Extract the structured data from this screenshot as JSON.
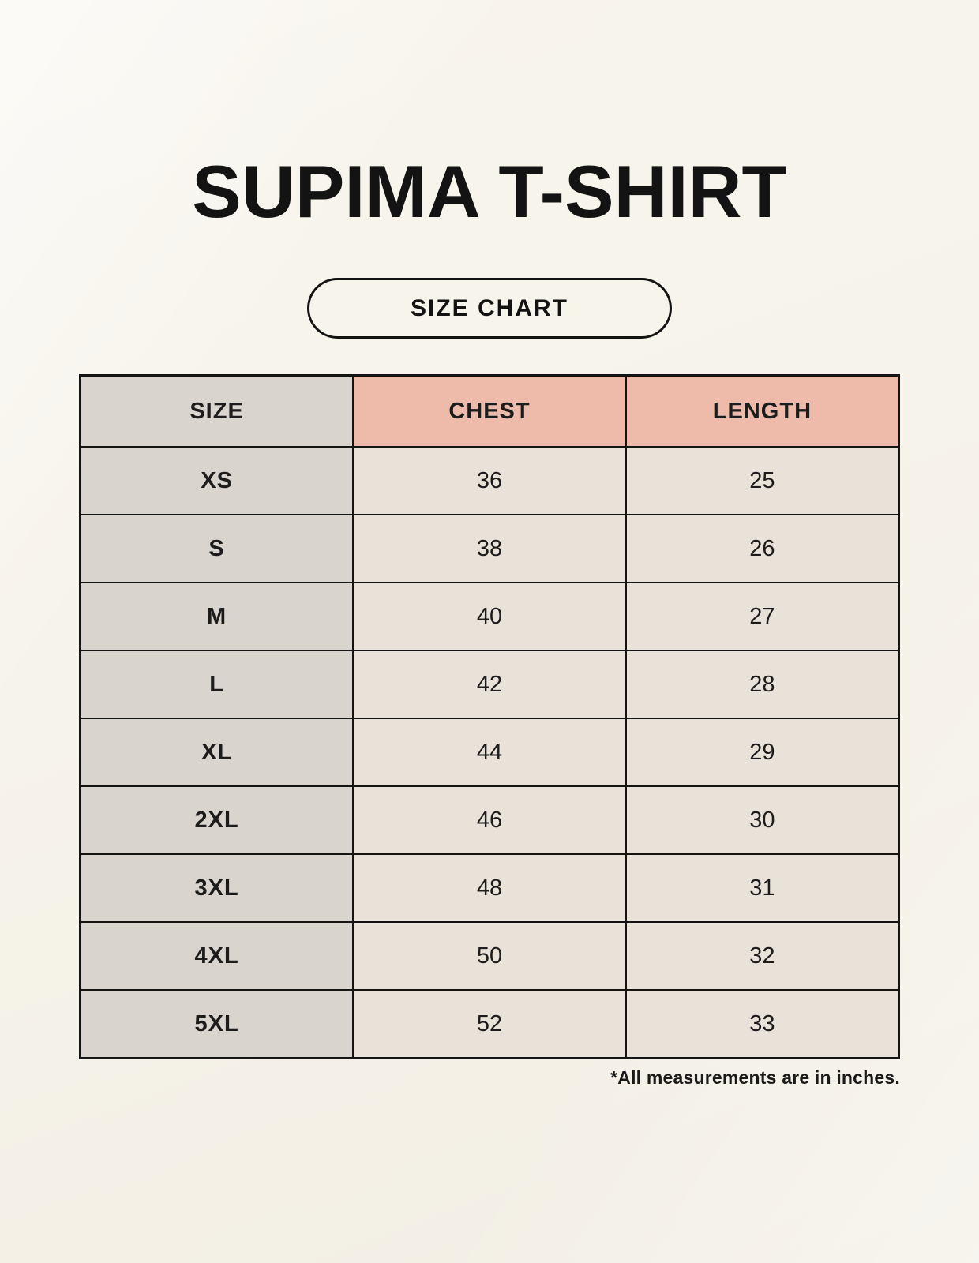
{
  "page": {
    "title": "SUPIMA T-SHIRT",
    "badge_label": "SIZE CHART",
    "footnote": "*All measurements are in inches."
  },
  "table": {
    "columns": [
      "SIZE",
      "CHEST",
      "LENGTH"
    ],
    "rows": [
      [
        "XS",
        "36",
        "25"
      ],
      [
        "S",
        "38",
        "26"
      ],
      [
        "M",
        "40",
        "27"
      ],
      [
        "L",
        "42",
        "28"
      ],
      [
        "XL",
        "44",
        "29"
      ],
      [
        "2XL",
        "46",
        "30"
      ],
      [
        "3XL",
        "48",
        "31"
      ],
      [
        "4XL",
        "50",
        "32"
      ],
      [
        "5XL",
        "52",
        "33"
      ]
    ],
    "units": "inches"
  },
  "colors": {
    "background": "#f6f3ea",
    "text": "#141414",
    "border": "#141414",
    "header_accent": "#eebbab",
    "size_column": "#dad4ce",
    "value_cell": "#e9e2d8"
  }
}
